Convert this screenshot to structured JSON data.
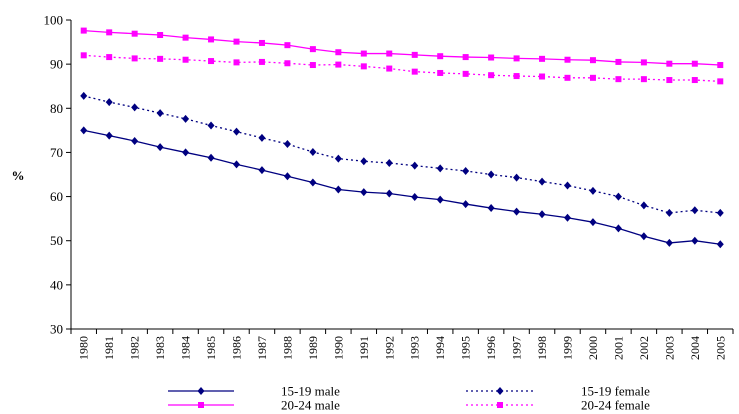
{
  "chart_data": {
    "type": "line",
    "title": "",
    "xlabel": "",
    "ylabel": "%",
    "ylim": [
      30,
      100
    ],
    "yticks": [
      "30",
      "40",
      "50",
      "60",
      "70",
      "80",
      "90",
      "100"
    ],
    "grid": false,
    "legend_position": "bottom",
    "x": [
      "1980",
      "1981",
      "1982",
      "1983",
      "1984",
      "1985",
      "1986",
      "1987",
      "1988",
      "1989",
      "1990",
      "1991",
      "1992",
      "1993",
      "1994",
      "1995",
      "1996",
      "1997",
      "1998",
      "1999",
      "2000",
      "2001",
      "2002",
      "2003",
      "2004",
      "2005"
    ],
    "series": [
      {
        "name": "15-19 male",
        "color": "#000080",
        "line_style": "solid",
        "marker": "diamond",
        "values": [
          75.0,
          73.8,
          72.6,
          71.2,
          70.0,
          68.8,
          67.3,
          66.0,
          64.6,
          63.2,
          61.6,
          61.0,
          60.7,
          59.9,
          59.3,
          58.3,
          57.4,
          56.6,
          56.0,
          55.2,
          54.2,
          52.8,
          51.0,
          49.5,
          50.0,
          49.2
        ]
      },
      {
        "name": "15-19 female",
        "color": "#000080",
        "line_style": "dotted",
        "marker": "diamond",
        "values": [
          82.8,
          81.4,
          80.2,
          78.9,
          77.6,
          76.1,
          74.7,
          73.3,
          71.9,
          70.1,
          68.6,
          68.0,
          67.6,
          67.0,
          66.4,
          65.8,
          65.0,
          64.3,
          63.4,
          62.5,
          61.3,
          60.0,
          58.0,
          56.3,
          56.9,
          56.3
        ]
      },
      {
        "name": "20-24 male",
        "color": "#ff00ff",
        "line_style": "solid",
        "marker": "square",
        "values": [
          97.6,
          97.2,
          96.9,
          96.6,
          96.0,
          95.6,
          95.1,
          94.8,
          94.3,
          93.4,
          92.7,
          92.4,
          92.4,
          92.1,
          91.8,
          91.6,
          91.5,
          91.3,
          91.2,
          91.0,
          90.9,
          90.5,
          90.4,
          90.1,
          90.1,
          89.8
        ]
      },
      {
        "name": "20-24 female",
        "color": "#ff00ff",
        "line_style": "dotted",
        "marker": "square",
        "values": [
          92.0,
          91.6,
          91.3,
          91.2,
          91.0,
          90.7,
          90.4,
          90.5,
          90.2,
          89.8,
          89.9,
          89.5,
          89.0,
          88.3,
          88.0,
          87.8,
          87.5,
          87.3,
          87.2,
          86.9,
          86.9,
          86.6,
          86.6,
          86.4,
          86.4,
          86.1
        ]
      }
    ]
  }
}
